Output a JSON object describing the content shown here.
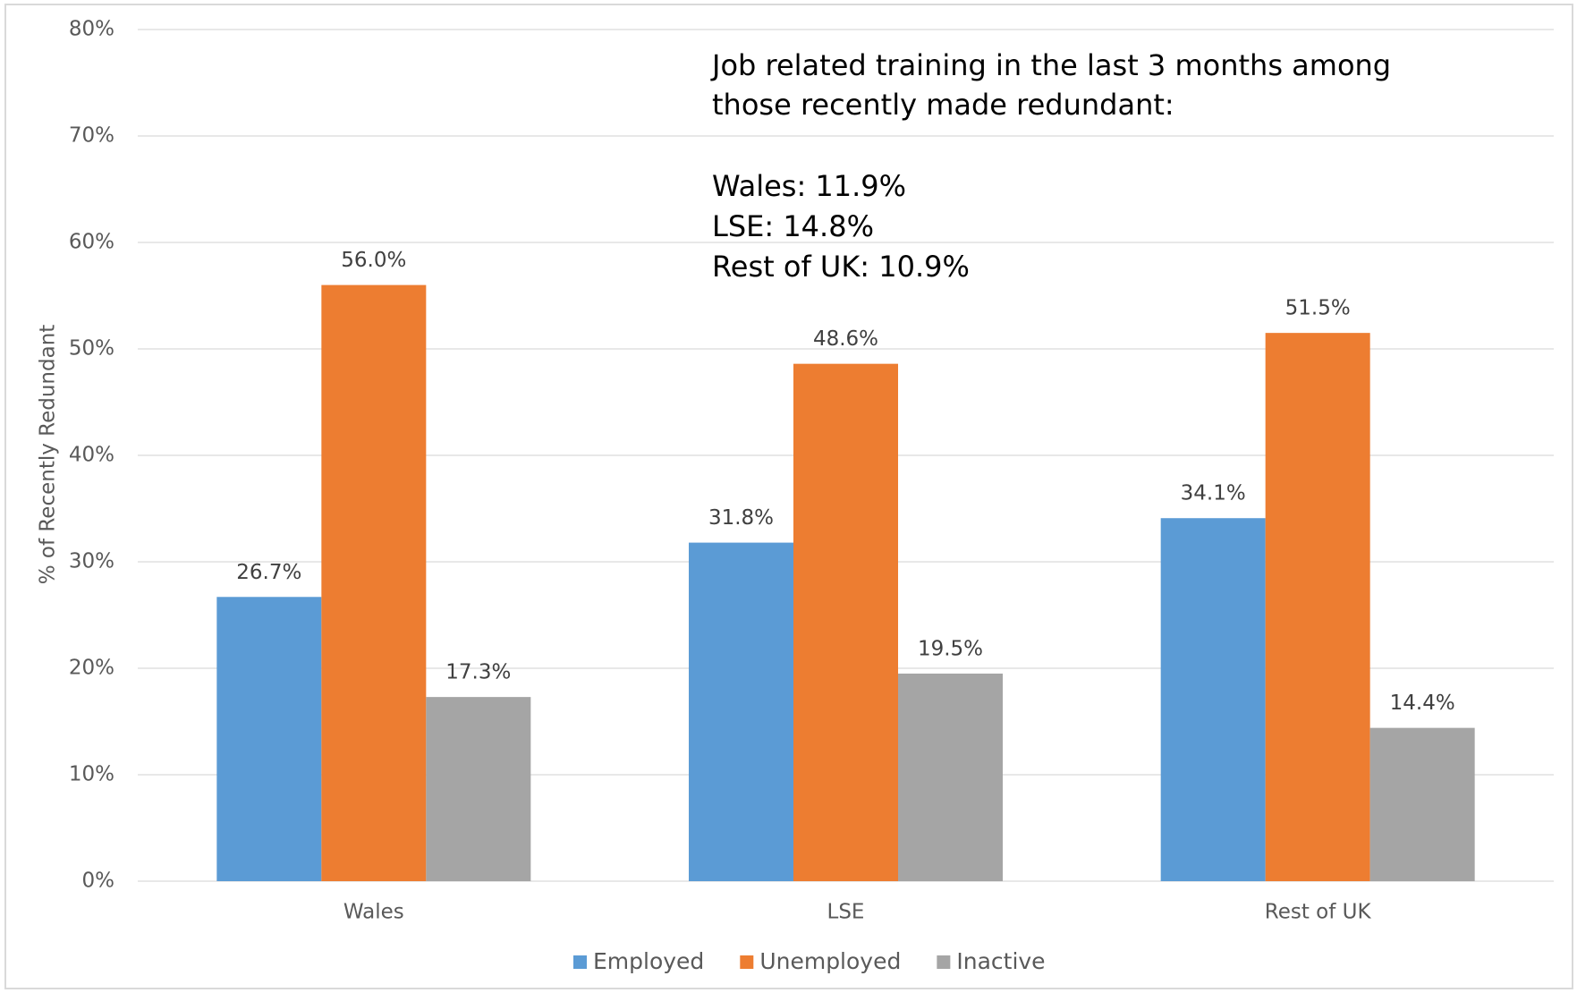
{
  "chart_data": {
    "type": "bar",
    "y_label": "% of Recently Redundant",
    "annotation": [
      "Job related training in the last 3 months among",
      "those recently made redundant:",
      "Wales: 11.9%",
      "LSE: 14.8%",
      "Rest of UK: 10.9%"
    ],
    "categories": [
      "Wales",
      "LSE",
      "Rest of UK"
    ],
    "series": [
      {
        "name": "Employed",
        "color": "#5b9bd5",
        "values": [
          26.7,
          31.8,
          34.1
        ],
        "value_labels": [
          "26.7%",
          "31.8%",
          "34.1%"
        ]
      },
      {
        "name": "Unemployed",
        "color": "#ed7d31",
        "values": [
          56.0,
          48.6,
          51.5
        ],
        "value_labels": [
          "56.0%",
          "48.6%",
          "51.5%"
        ]
      },
      {
        "name": "Inactive",
        "color": "#a5a5a5",
        "values": [
          17.3,
          19.5,
          14.4
        ],
        "value_labels": [
          "17.3%",
          "19.5%",
          "14.4%"
        ]
      }
    ],
    "ylim": [
      0,
      80
    ],
    "yticks": [
      {
        "value": 0,
        "label": "0%"
      },
      {
        "value": 10,
        "label": "10%"
      },
      {
        "value": 20,
        "label": "20%"
      },
      {
        "value": 30,
        "label": "30%"
      },
      {
        "value": 40,
        "label": "40%"
      },
      {
        "value": 50,
        "label": "50%"
      },
      {
        "value": 60,
        "label": "60%"
      },
      {
        "value": 70,
        "label": "70%"
      },
      {
        "value": 80,
        "label": "80%"
      }
    ],
    "grid": true,
    "legend": "bottom"
  }
}
